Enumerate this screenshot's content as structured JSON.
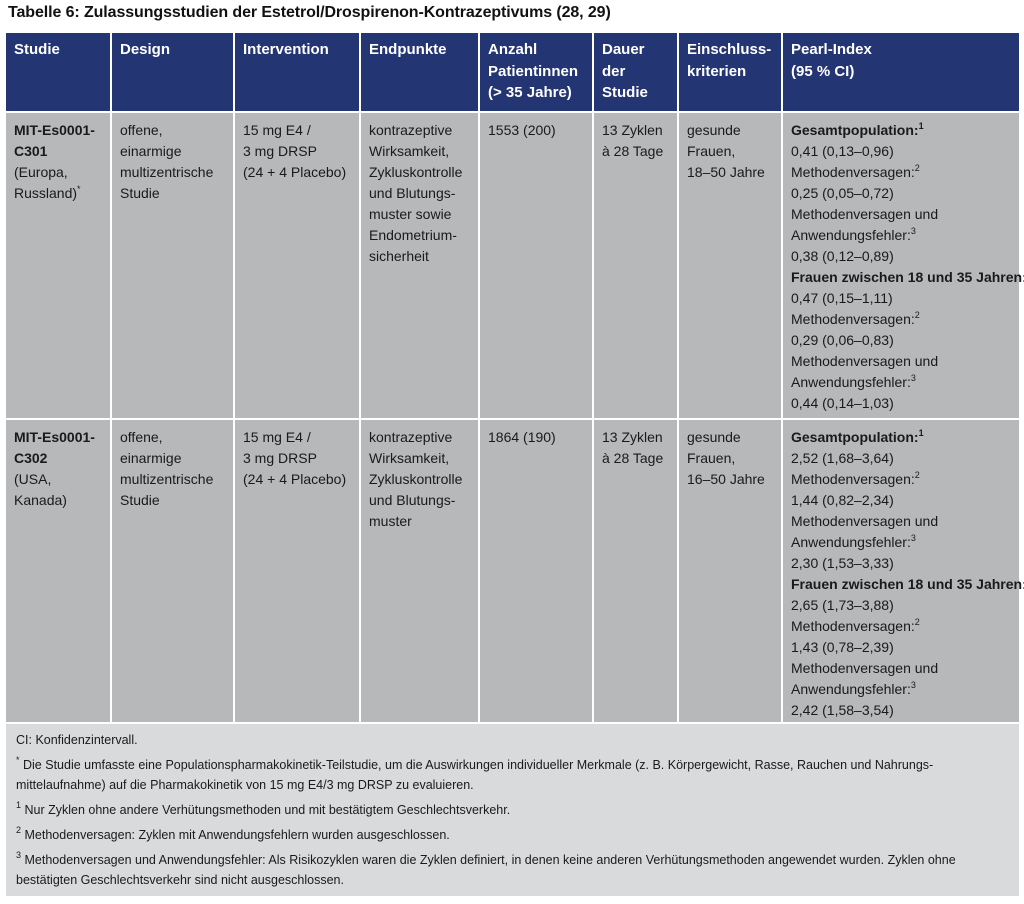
{
  "caption": "Tabelle 6: Zulassungsstudien der Estetrol/Drospirenon-Kontrazeptivums (28, 29)",
  "columns": [
    [
      "Studie"
    ],
    [
      "Design"
    ],
    [
      "Intervention"
    ],
    [
      "Endpunkte"
    ],
    [
      "Anzahl",
      "Patientinnen",
      "(> 35 Jahre)"
    ],
    [
      "Dauer",
      "der",
      "Studie"
    ],
    [
      "Einschluss-",
      "kriterien"
    ],
    [
      "Pearl-Index",
      "(95 % CI)"
    ]
  ],
  "rows": [
    {
      "study_id": [
        "MIT-Es0001-",
        "C301"
      ],
      "study_region": [
        "(Europa,",
        "Russland)"
      ],
      "study_mark": "*",
      "design": [
        "offene,",
        "einarmige",
        "multizentrische",
        "Studie"
      ],
      "intervention": [
        "15 mg E4 /",
        "3 mg DRSP",
        "(24 + 4 Placebo)"
      ],
      "endpoints": [
        "kontrazeptive",
        "Wirksamkeit,",
        "Zykluskontrolle",
        "und Blutungs-",
        "muster sowie",
        "Endometrium-",
        "sicherheit"
      ],
      "patients": "1553 (200)",
      "duration": [
        "13 Zyklen",
        "à 28 Tage"
      ],
      "criteria": [
        "gesunde",
        "Frauen,",
        "18–50 Jahre"
      ],
      "pearl": [
        {
          "text": "Gesamtpopulation:",
          "bold": true,
          "sup": "1"
        },
        {
          "text": "0,41 (0,13–0,96)"
        },
        {
          "text": "Methodenversagen:",
          "sup": "2"
        },
        {
          "text": "0,25 (0,05–0,72)"
        },
        {
          "text": "Methodenversagen und"
        },
        {
          "text": "Anwendungsfehler:",
          "sup": "3"
        },
        {
          "text": "0,38 (0,12–0,89)"
        },
        {
          "text": "Frauen zwischen 18 und 35 Jahren:",
          "bold": true
        },
        {
          "text": "0,47 (0,15–1,11)"
        },
        {
          "text": "Methodenversagen:",
          "sup": "2"
        },
        {
          "text": "0,29 (0,06–0,83)"
        },
        {
          "text": "Methodenversagen und"
        },
        {
          "text": "Anwendungsfehler:",
          "sup": "3"
        },
        {
          "text": "0,44 (0,14–1,03)"
        }
      ]
    },
    {
      "study_id": [
        "MIT-Es0001-",
        "C302"
      ],
      "study_region": [
        "(USA,",
        "Kanada)"
      ],
      "study_mark": "",
      "design": [
        "offene,",
        "einarmige",
        "multizentrische",
        "Studie"
      ],
      "intervention": [
        "15 mg E4 /",
        "3 mg DRSP",
        "(24 + 4 Placebo)"
      ],
      "endpoints": [
        "kontrazeptive",
        "Wirksamkeit,",
        "Zykluskontrolle",
        "und Blutungs-",
        "muster"
      ],
      "patients": "1864 (190)",
      "duration": [
        "13 Zyklen",
        "à 28 Tage"
      ],
      "criteria": [
        "gesunde",
        "Frauen,",
        "16–50 Jahre"
      ],
      "pearl": [
        {
          "text": "Gesamtpopulation:",
          "bold": true,
          "sup": "1"
        },
        {
          "text": "2,52 (1,68–3,64)"
        },
        {
          "text": "Methodenversagen:",
          "sup": "2"
        },
        {
          "text": "1,44 (0,82–2,34)"
        },
        {
          "text": "Methodenversagen und"
        },
        {
          "text": "Anwendungsfehler:",
          "sup": "3"
        },
        {
          "text": "2,30 (1,53–3,33)"
        },
        {
          "text": "Frauen zwischen 18 und 35 Jahren:",
          "bold": true
        },
        {
          "text": "2,65 (1,73–3,88)"
        },
        {
          "text": "Methodenversagen:",
          "sup": "2"
        },
        {
          "text": "1,43 (0,78–2,39)"
        },
        {
          "text": "Methodenversagen und"
        },
        {
          "text": "Anwendungsfehler:",
          "sup": "3"
        },
        {
          "text": "2,42 (1,58–3,54)"
        }
      ]
    }
  ],
  "footnotes": [
    {
      "mark": "",
      "lines": [
        "CI: Konfidenzintervall."
      ]
    },
    {
      "mark": "*",
      "lines": [
        "Die Studie umfasste eine Populationspharmakokinetik-Teilstudie, um die Auswirkungen individueller Merkmale (z. B. Körpergewicht, Rasse, Rauchen und Nahrungs-",
        "mittelaufnahme) auf die Pharmakokinetik von 15 mg E4/3 mg DRSP zu evaluieren."
      ]
    },
    {
      "mark": "1",
      "lines": [
        "Nur Zyklen ohne andere Verhütungsmethoden und mit bestätigtem Geschlechtsverkehr."
      ]
    },
    {
      "mark": "2",
      "lines": [
        "Methodenversagen: Zyklen mit Anwendungsfehlern wurden ausgeschlossen."
      ]
    },
    {
      "mark": "3",
      "lines": [
        "Methodenversagen und Anwendungsfehler: Als Risikozyklen waren die Zyklen definiert, in denen keine anderen Verhütungsmethoden angewendet wurden. Zyklen ohne",
        "bestätigten Geschlechtsverkehr sind nicht ausgeschlossen."
      ]
    }
  ]
}
